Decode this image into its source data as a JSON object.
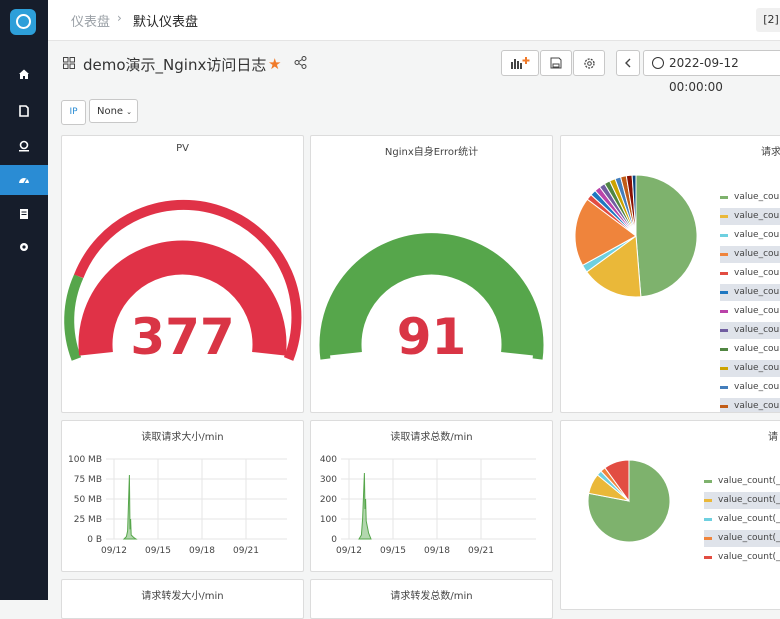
{
  "breadcrumb": {
    "root": "仪表盘",
    "separator": "›",
    "current": "默认仪表盘"
  },
  "topbar_right": "[2]",
  "dashboard": {
    "title": "demo演示_Nginx访问日志",
    "time_range": "2022-09-12 00:00:00"
  },
  "filters": {
    "ip_label": "IP",
    "ip_value": "None"
  },
  "colors": {
    "accent": "#2a8cd4",
    "gauge_red": "#e03247",
    "gauge_green": "#56a64b",
    "value_red": "#d93545"
  },
  "panels": {
    "pv": {
      "title": "PV",
      "value": "377"
    },
    "error": {
      "title": "Nginx自身Error统计",
      "value": "91"
    },
    "req_pie": {
      "title": "请求",
      "legend": [
        "value_coun",
        "value_coun",
        "value_coun",
        "value_coun",
        "value_coun",
        "value_coun",
        "value_coun",
        "value_coun",
        "value_coun",
        "value_coun",
        "value_coun",
        "value_coun"
      ]
    },
    "req_size": {
      "title": "读取请求大小/min"
    },
    "req_total": {
      "title": "读取请求总数/min"
    },
    "pie2": {
      "title": "请",
      "legend": [
        "value_count(_i",
        "value_count(_i",
        "value_count(_i",
        "value_count(_i",
        "value_count(_i"
      ]
    },
    "fwd_size": {
      "title": "请求转发大小/min"
    },
    "fwd_total": {
      "title": "请求转发总数/min"
    }
  },
  "chart_data": [
    {
      "type": "line",
      "title": "读取请求大小/min",
      "x_ticks": [
        "09/12",
        "09/15",
        "09/18",
        "09/21"
      ],
      "y_ticks": [
        "100 MB",
        "75 MB",
        "50 MB",
        "25 MB",
        "0 B"
      ],
      "ylim": [
        0,
        100
      ],
      "series": [
        {
          "x": [
            0,
            0.2,
            0.3,
            0.45,
            0.5,
            0.55,
            0.6,
            0.8,
            1.0
          ],
          "values": [
            0,
            3,
            10,
            80,
            12,
            25,
            5,
            2,
            0
          ]
        }
      ]
    },
    {
      "type": "line",
      "title": "读取请求总数/min",
      "x_ticks": [
        "09/12",
        "09/15",
        "09/18",
        "09/21"
      ],
      "y_ticks": [
        "400",
        "300",
        "200",
        "100",
        "0"
      ],
      "ylim": [
        0,
        400
      ],
      "series": [
        {
          "x": [
            0,
            0.2,
            0.3,
            0.45,
            0.5,
            0.55,
            0.6,
            0.8,
            1.0
          ],
          "values": [
            0,
            20,
            100,
            330,
            150,
            200,
            90,
            30,
            0
          ]
        }
      ]
    },
    {
      "type": "pie",
      "title": "请求",
      "values": [
        48,
        16,
        2,
        18,
        1.5,
        1.5,
        1.5,
        1.5,
        1.5,
        1.5,
        1.5,
        1.5,
        1.5,
        1
      ],
      "colors": [
        "#7eb26d",
        "#eab839",
        "#6ed0e0",
        "#ef843c",
        "#e24d42",
        "#1f78c1",
        "#ba43a9",
        "#705da0",
        "#508642",
        "#cca300",
        "#447ebc",
        "#c15c17",
        "#890f02",
        "#0a437c"
      ]
    },
    {
      "type": "pie",
      "title": "请",
      "values": [
        78,
        8,
        2,
        2,
        10
      ],
      "colors": [
        "#7eb26d",
        "#eab839",
        "#6ed0e0",
        "#ef843c",
        "#e24d42"
      ]
    }
  ]
}
